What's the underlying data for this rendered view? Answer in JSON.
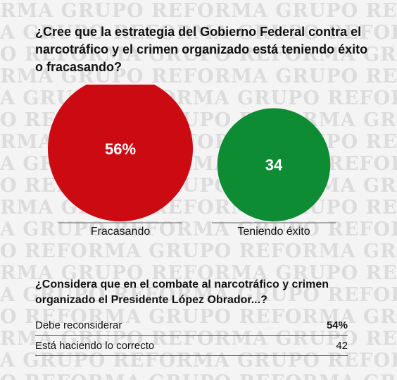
{
  "watermark": {
    "lines": [
      "RMA GRUPO REFORMA GRUPO REFORMA GRUPO",
      "A GRUPO REFORMA GRUPO REFORMA GRUPO RE",
      "O REFORMA GRUPO REFORMA GRUPO REFORMA",
      "RMA GRUPO REFORMA GRUPO REFORMA GRUPO",
      "A GRUPO REFORMA GRUPO REFORMA GRUPO RE",
      "O REFORMA GRUPO REFORMA GRUPO REFORMA"
    ]
  },
  "question1": "¿Cree que la estrategia del Gobierno Federal contra el narcotráfico y el crimen organizado está teniendo éxito o fracasando?",
  "chart_data": {
    "type": "bubble",
    "categories": [
      "Fracasando",
      "Teniendo éxito"
    ],
    "values": [
      56,
      34
    ],
    "value_labels": [
      "56%",
      "34"
    ],
    "colors": [
      "#cc0a12",
      "#0d8c34"
    ]
  },
  "question2": "¿Considera que en el combate al narcotráfico y crimen organizado el Presidente López Obrador...?",
  "table": {
    "rows": [
      {
        "label": "Debe reconsiderar",
        "value": "54%",
        "bold": true
      },
      {
        "label": "Está haciendo lo correcto",
        "value": "42",
        "bold": false
      }
    ]
  }
}
